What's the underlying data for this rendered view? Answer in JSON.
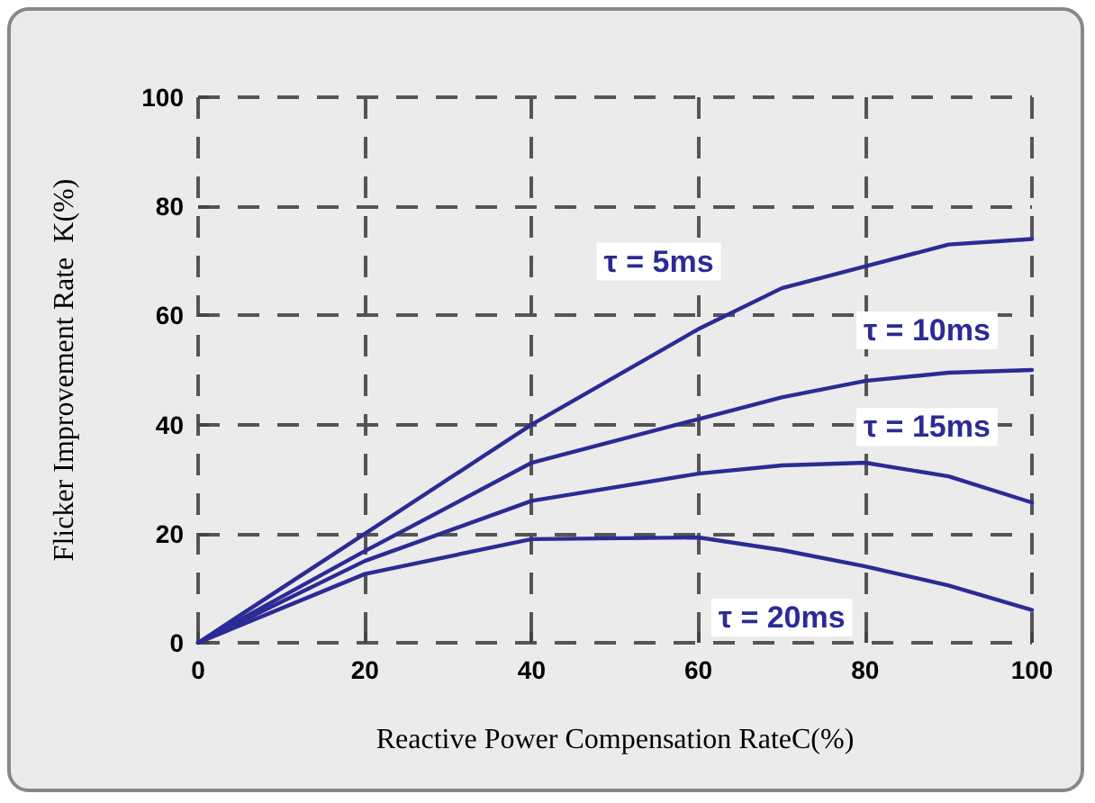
{
  "chart_data": {
    "type": "line",
    "xlabel": "Reactive Power Compensation RateC(%)",
    "ylabel": "Flicker Improvement Rate  K(%)",
    "x": [
      0,
      20,
      40,
      60,
      70,
      80,
      90,
      100
    ],
    "series": [
      {
        "name": "τ = 5ms",
        "color": "#2b2b96",
        "values": [
          0,
          20,
          40,
          57.5,
          65,
          69,
          73,
          74
        ]
      },
      {
        "name": "τ = 10ms",
        "color": "#2b2b96",
        "values": [
          0,
          16.8,
          33,
          41,
          45,
          48,
          49.5,
          50
        ]
      },
      {
        "name": "τ = 15ms",
        "color": "#2b2b96",
        "values": [
          0,
          15,
          26,
          31,
          32.5,
          33,
          30.5,
          25.7
        ]
      },
      {
        "name": "τ = 20ms",
        "color": "#2b2b96",
        "values": [
          0,
          12.6,
          19,
          19.3,
          17,
          14,
          10.5,
          6
        ]
      }
    ],
    "xlim": [
      0,
      100
    ],
    "xticks": [
      0,
      20,
      40,
      60,
      80,
      100
    ],
    "ylim": [
      0,
      100
    ],
    "yticks": [
      0,
      20,
      40,
      60,
      80,
      100
    ],
    "grid": true,
    "marker": "none",
    "line_style": "solid"
  }
}
